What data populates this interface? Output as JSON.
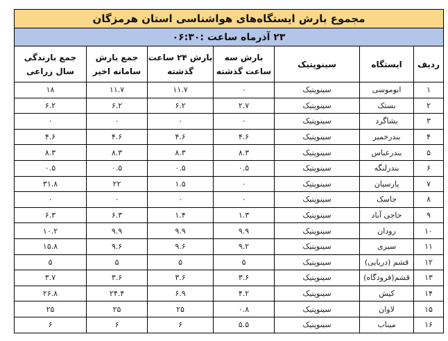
{
  "title": "مجموع بارش ایستگاه‌های هواشناسی استان هرمزگان",
  "date_line": "۲۳ آذرماه ساعت :۰۶:۳۰",
  "colors": {
    "title_bg": "#fad889",
    "date_bg": "#b4c6e7"
  },
  "headers": [
    "ردیف",
    "ایستگاه",
    "سینوپتیک",
    "بارش سه ساعت گذشته",
    "بارش ۲۴ ساعت گذشته",
    "جمع بارش سامانه اخیر",
    "جمع بارندگی سال زراعی"
  ],
  "rows": [
    [
      "۱",
      "ابوموسی",
      "سینوپتیک",
      "۰",
      "۱۱.۷",
      "۱۱.۷",
      "۱۸"
    ],
    [
      "۲",
      "بستک",
      "سینوپتیک",
      "۲.۷",
      "۶.۲",
      "۶.۲",
      "۶.۲"
    ],
    [
      "۳",
      "بشاگرد",
      "سینوپتیک",
      "۰",
      "۰",
      "۰",
      "۰"
    ],
    [
      "۴",
      "بندرخمیر",
      "سینوپتیک",
      "۴.۶",
      "۴.۶",
      "۴.۶",
      "۴.۶"
    ],
    [
      "۵",
      "بندرعباس",
      "سینوپتیک",
      "۸.۳",
      "۸.۳",
      "۸.۳",
      "۸.۳"
    ],
    [
      "۶",
      "بندرلنگه",
      "سینوپتیک",
      "۰.۵",
      "۰.۵",
      "۰.۵",
      "۰.۵"
    ],
    [
      "۷",
      "پارسیان",
      "سینوپتیک",
      "۰",
      "۱.۵",
      "۲۲",
      "۳۱.۸"
    ],
    [
      "۸",
      "جاسک",
      "سینوپتیک",
      "۰",
      "۰",
      "۰",
      "۰"
    ],
    [
      "۹",
      "حاجی آباد",
      "سینوپتیک",
      "۱.۳",
      "۱.۴",
      "۶.۳",
      "۶.۳"
    ],
    [
      "۱۰",
      "رودان",
      "سینوپتیک",
      "۹.۹",
      "۹.۹",
      "۹.۹",
      "۱۰.۲"
    ],
    [
      "۱۱",
      "سیری",
      "سینوپتیک",
      "۹.۲",
      "۹.۶",
      "۹.۶",
      "۱۵.۸"
    ],
    [
      "۱۲",
      "قشم (دریایی)",
      "سینوپتیک",
      "۵",
      "۵",
      "۵",
      "۵"
    ],
    [
      "۱۳",
      "قشم(فرودگاه)",
      "سینوپتیک",
      "۳.۶",
      "۳.۶",
      "۳.۶",
      "۳.۷"
    ],
    [
      "۱۴",
      "کیش",
      "سینوپتیک",
      "۴.۲",
      "۶.۹",
      "۲۴.۴",
      "۲۶.۸"
    ],
    [
      "۱۵",
      "لاوان",
      "سینوپتیک",
      "۰.۸",
      "۲۵",
      "۲۵",
      "۲۵"
    ],
    [
      "۱۶",
      "میناب",
      "سینوپتیک",
      "۵.۵",
      "۶",
      "۶",
      "۶"
    ]
  ]
}
